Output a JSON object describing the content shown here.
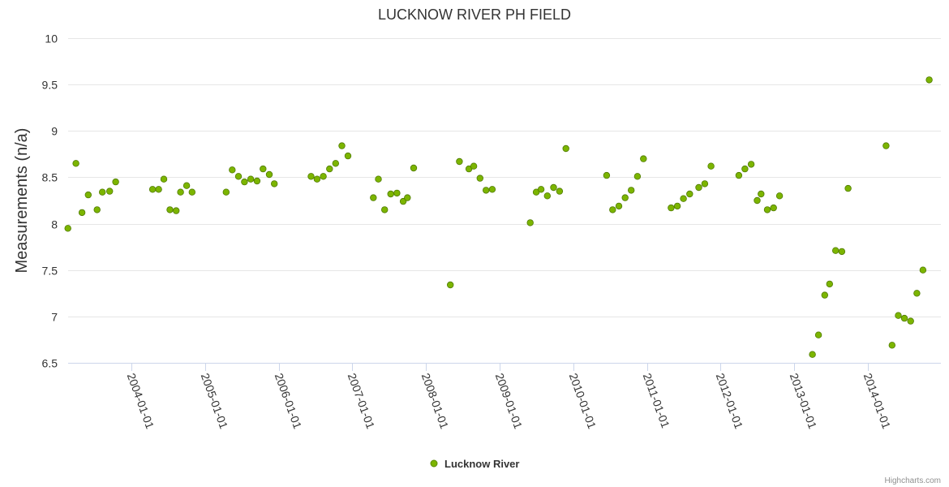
{
  "chart_data": {
    "type": "scatter",
    "title": "LUCKNOW RIVER PH FIELD",
    "ylabel": "Measurements (n/a)",
    "xlabel": "",
    "ylim": [
      6.5,
      10
    ],
    "yticks": [
      "6.5",
      "7",
      "7.5",
      "8",
      "8.5",
      "9",
      "9.5",
      "10"
    ],
    "xticks": [
      "2004-01-01",
      "2005-01-01",
      "2006-01-01",
      "2007-01-01",
      "2008-01-01",
      "2009-01-01",
      "2010-01-01",
      "2011-01-01",
      "2012-01-01",
      "2013-01-01",
      "2014-01-01"
    ],
    "grid": true,
    "legend_position": "bottom-center",
    "series": [
      {
        "name": "Lucknow River",
        "color": "#7cb500",
        "points": [
          [
            "2003-02-20",
            7.95
          ],
          [
            "2003-04-01",
            8.65
          ],
          [
            "2003-05-01",
            8.12
          ],
          [
            "2003-06-01",
            8.31
          ],
          [
            "2003-07-15",
            8.15
          ],
          [
            "2003-08-10",
            8.34
          ],
          [
            "2003-09-15",
            8.35
          ],
          [
            "2003-10-15",
            8.45
          ],
          [
            "2004-04-15",
            8.37
          ],
          [
            "2004-05-15",
            8.37
          ],
          [
            "2004-06-10",
            8.48
          ],
          [
            "2004-07-10",
            8.15
          ],
          [
            "2004-08-10",
            8.14
          ],
          [
            "2004-09-01",
            8.34
          ],
          [
            "2004-10-01",
            8.41
          ],
          [
            "2004-10-28",
            8.34
          ],
          [
            "2005-04-15",
            8.34
          ],
          [
            "2005-05-15",
            8.58
          ],
          [
            "2005-06-15",
            8.51
          ],
          [
            "2005-07-15",
            8.45
          ],
          [
            "2005-08-15",
            8.48
          ],
          [
            "2005-09-15",
            8.46
          ],
          [
            "2005-10-15",
            8.59
          ],
          [
            "2005-11-15",
            8.53
          ],
          [
            "2005-12-10",
            8.43
          ],
          [
            "2006-06-10",
            8.51
          ],
          [
            "2006-07-10",
            8.48
          ],
          [
            "2006-08-10",
            8.51
          ],
          [
            "2006-09-10",
            8.59
          ],
          [
            "2006-10-10",
            8.65
          ],
          [
            "2006-11-10",
            8.84
          ],
          [
            "2006-12-10",
            8.73
          ],
          [
            "2007-04-15",
            8.28
          ],
          [
            "2007-05-10",
            8.48
          ],
          [
            "2007-06-10",
            8.15
          ],
          [
            "2007-07-10",
            8.32
          ],
          [
            "2007-08-10",
            8.33
          ],
          [
            "2007-09-10",
            8.24
          ],
          [
            "2007-10-01",
            8.28
          ],
          [
            "2007-11-01",
            8.6
          ],
          [
            "2008-05-01",
            7.34
          ],
          [
            "2008-06-15",
            8.67
          ],
          [
            "2008-08-01",
            8.59
          ],
          [
            "2008-08-25",
            8.62
          ],
          [
            "2008-09-25",
            8.49
          ],
          [
            "2008-10-25",
            8.36
          ],
          [
            "2008-11-25",
            8.37
          ],
          [
            "2009-06-01",
            8.01
          ],
          [
            "2009-07-01",
            8.34
          ],
          [
            "2009-07-25",
            8.37
          ],
          [
            "2009-08-25",
            8.3
          ],
          [
            "2009-09-25",
            8.39
          ],
          [
            "2009-10-25",
            8.35
          ],
          [
            "2009-11-25",
            8.81
          ],
          [
            "2010-06-15",
            8.52
          ],
          [
            "2010-07-15",
            8.15
          ],
          [
            "2010-08-15",
            8.19
          ],
          [
            "2010-09-15",
            8.28
          ],
          [
            "2010-10-15",
            8.36
          ],
          [
            "2010-11-15",
            8.51
          ],
          [
            "2010-12-15",
            8.7
          ],
          [
            "2011-05-01",
            8.17
          ],
          [
            "2011-06-01",
            8.19
          ],
          [
            "2011-07-01",
            8.27
          ],
          [
            "2011-08-01",
            8.32
          ],
          [
            "2011-09-15",
            8.39
          ],
          [
            "2011-10-15",
            8.43
          ],
          [
            "2011-11-15",
            8.62
          ],
          [
            "2012-04-01",
            8.52
          ],
          [
            "2012-05-01",
            8.59
          ],
          [
            "2012-06-01",
            8.64
          ],
          [
            "2012-07-01",
            8.25
          ],
          [
            "2012-07-20",
            8.32
          ],
          [
            "2012-08-20",
            8.15
          ],
          [
            "2012-09-20",
            8.17
          ],
          [
            "2012-10-20",
            8.3
          ],
          [
            "2013-04-01",
            6.59
          ],
          [
            "2013-05-01",
            6.8
          ],
          [
            "2013-06-01",
            7.23
          ],
          [
            "2013-06-25",
            7.35
          ],
          [
            "2013-07-25",
            7.71
          ],
          [
            "2013-08-25",
            7.7
          ],
          [
            "2013-09-25",
            8.38
          ],
          [
            "2014-04-01",
            8.84
          ],
          [
            "2014-05-01",
            6.69
          ],
          [
            "2014-06-01",
            7.01
          ],
          [
            "2014-07-01",
            6.98
          ],
          [
            "2014-08-01",
            6.95
          ],
          [
            "2014-09-01",
            7.25
          ],
          [
            "2014-10-01",
            7.5
          ],
          [
            "2014-11-01",
            9.55
          ]
        ]
      }
    ]
  },
  "credits": "Highcharts.com"
}
